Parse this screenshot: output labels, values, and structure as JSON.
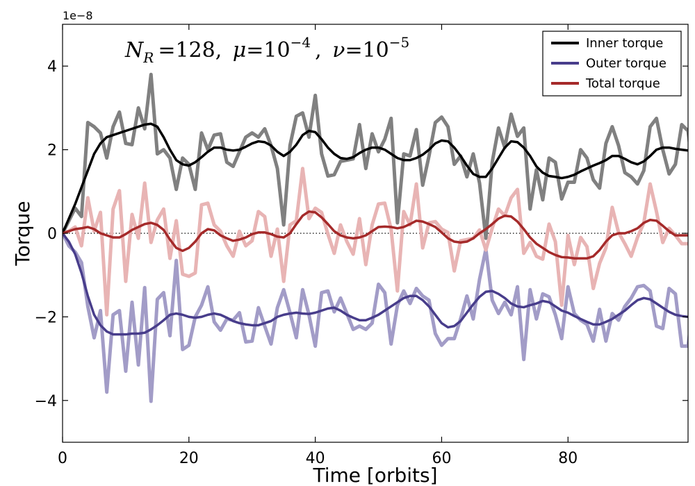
{
  "chart_data": {
    "type": "line",
    "title": "N_R =128, μ =10^−4 , ν =10^−5",
    "title_parts": {
      "n_sym": "N",
      "n_sub": "R",
      "n_val": "=128,",
      "mu_sym": "μ",
      "mu_val": "=10",
      "mu_exp": "−4",
      "comma": ",",
      "nu_sym": "ν",
      "nu_val": "=10",
      "nu_exp": "−5"
    },
    "xlabel": "Time [orbits]",
    "ylabel": "Torque",
    "y_offset_text": "1e−8",
    "xlim": [
      0,
      99
    ],
    "ylim": [
      -5,
      5
    ],
    "xticks": [
      0,
      20,
      40,
      60,
      80
    ],
    "xtick_labels": [
      "0",
      "20",
      "40",
      "60",
      "80"
    ],
    "yticks": [
      -4,
      -2,
      0,
      2,
      4
    ],
    "ytick_labels": [
      "−4",
      "−2",
      "0",
      "2",
      "4"
    ],
    "zero_line": true,
    "legend": {
      "placement": "top-right",
      "entries": [
        {
          "label": "Inner torque",
          "color": "#000000"
        },
        {
          "label": "Outer torque",
          "color": "#483d8b"
        },
        {
          "label": "Total torque",
          "color": "#a52a2a"
        }
      ]
    },
    "raw_series": [
      {
        "key": "inner_raw",
        "color": "#808080",
        "values": [
          0.0,
          0.3,
          0.6,
          0.4,
          2.65,
          2.55,
          2.4,
          1.8,
          2.55,
          2.9,
          2.15,
          2.12,
          3.0,
          2.5,
          3.8,
          1.9,
          2.0,
          1.8,
          1.05,
          1.8,
          1.65,
          1.05,
          2.4,
          2.0,
          2.35,
          2.38,
          1.7,
          1.6,
          1.95,
          2.3,
          2.4,
          2.3,
          2.5,
          2.1,
          1.55,
          0.2,
          2.1,
          2.8,
          2.88,
          2.3,
          3.3,
          1.9,
          1.37,
          1.4,
          1.72,
          1.75,
          1.78,
          2.6,
          1.55,
          2.38,
          1.95,
          2.25,
          2.75,
          0.25,
          1.9,
          1.85,
          2.48,
          1.15,
          1.85,
          2.65,
          2.78,
          2.55,
          1.65,
          1.85,
          1.35,
          1.9,
          1.2,
          -0.12,
          1.7,
          2.52,
          2.05,
          2.85,
          2.32,
          2.52,
          0.58,
          1.52,
          0.8,
          1.8,
          1.7,
          0.82,
          1.22,
          1.22,
          2.0,
          1.8,
          1.28,
          1.08,
          2.15,
          2.55,
          2.1,
          1.45,
          1.35,
          1.18,
          1.5,
          2.55,
          2.75,
          2.0,
          1.42,
          1.65,
          2.6,
          2.45,
          1.2
        ]
      },
      {
        "key": "outer_raw",
        "color": "#a29cc7",
        "values": [
          0.0,
          -0.3,
          -0.45,
          -0.7,
          -1.75,
          -2.5,
          -1.85,
          -3.8,
          -1.95,
          -1.85,
          -3.3,
          -1.65,
          -3.15,
          -1.3,
          -4.02,
          -1.58,
          -1.42,
          -2.45,
          -0.65,
          -2.78,
          -2.68,
          -2.0,
          -1.72,
          -1.28,
          -2.12,
          -2.32,
          -2.05,
          -2.08,
          -1.9,
          -2.6,
          -2.58,
          -1.78,
          -2.22,
          -2.65,
          -1.78,
          -1.35,
          -1.9,
          -2.5,
          -1.35,
          -1.95,
          -2.7,
          -1.42,
          -1.38,
          -1.88,
          -1.55,
          -1.92,
          -2.3,
          -2.22,
          -2.3,
          -2.15,
          -1.22,
          -1.42,
          -2.65,
          -1.72,
          -1.38,
          -1.68,
          -1.32,
          -1.5,
          -1.6,
          -2.4,
          -2.68,
          -2.52,
          -2.52,
          -2.05,
          -1.5,
          -2.05,
          -1.1,
          -0.38,
          -1.6,
          -1.92,
          -1.65,
          -1.95,
          -1.28,
          -3.02,
          -1.35,
          -2.05,
          -1.45,
          -1.52,
          -1.95,
          -2.52,
          -1.28,
          -1.92,
          -2.08,
          -2.18,
          -2.58,
          -1.82,
          -2.58,
          -1.92,
          -2.08,
          -1.75,
          -1.55,
          -1.28,
          -1.25,
          -1.38,
          -2.22,
          -2.28,
          -1.32,
          -1.45,
          -2.7,
          -2.7,
          -1.42
        ]
      },
      {
        "key": "total_raw",
        "color": "#e8b4b4",
        "values": [
          0.0,
          0.05,
          0.15,
          -0.3,
          0.85,
          0.05,
          0.5,
          -1.95,
          0.58,
          1.02,
          -1.15,
          0.45,
          -0.12,
          1.2,
          -0.22,
          0.32,
          0.58,
          -0.6,
          0.3,
          -0.98,
          -1.03,
          -0.95,
          0.68,
          0.72,
          0.2,
          0.05,
          -0.3,
          -0.55,
          0.05,
          -0.3,
          -0.18,
          0.52,
          0.4,
          -0.55,
          0.1,
          -1.15,
          0.2,
          0.3,
          1.55,
          0.35,
          0.6,
          0.5,
          -0.02,
          -0.48,
          0.2,
          -0.2,
          -0.5,
          0.35,
          -0.75,
          0.2,
          0.7,
          0.72,
          0.1,
          -1.38,
          0.52,
          0.2,
          1.18,
          -0.35,
          0.25,
          0.28,
          0.1,
          0.02,
          -0.9,
          -0.18,
          -0.15,
          -0.12,
          0.08,
          -0.4,
          0.12,
          0.58,
          0.42,
          0.85,
          1.05,
          -0.48,
          -0.22,
          -0.55,
          -0.62,
          0.22,
          -0.2,
          -1.72,
          -0.05,
          -0.75,
          -0.1,
          -0.32,
          -1.32,
          -0.72,
          -0.35,
          0.62,
          0.02,
          -0.25,
          -0.55,
          -0.1,
          0.25,
          1.18,
          0.52,
          -0.22,
          0.12,
          -0.05,
          -0.25,
          -0.25,
          -0.25
        ]
      }
    ],
    "series": [
      {
        "name": "Inner torque",
        "color": "#000000",
        "values": [
          0.0,
          0.35,
          0.7,
          1.1,
          1.5,
          1.9,
          2.15,
          2.3,
          2.35,
          2.4,
          2.45,
          2.5,
          2.55,
          2.6,
          2.62,
          2.55,
          2.3,
          2.0,
          1.75,
          1.65,
          1.62,
          1.7,
          1.82,
          1.95,
          2.05,
          2.05,
          2.0,
          1.98,
          2.0,
          2.07,
          2.15,
          2.2,
          2.18,
          2.1,
          1.95,
          1.85,
          1.95,
          2.12,
          2.35,
          2.45,
          2.42,
          2.25,
          2.05,
          1.9,
          1.8,
          1.78,
          1.82,
          1.92,
          2.0,
          2.05,
          2.05,
          2.0,
          1.9,
          1.8,
          1.75,
          1.75,
          1.8,
          1.88,
          2.0,
          2.15,
          2.22,
          2.2,
          2.05,
          1.85,
          1.62,
          1.42,
          1.35,
          1.35,
          1.55,
          1.8,
          2.05,
          2.2,
          2.18,
          2.05,
          1.85,
          1.6,
          1.45,
          1.37,
          1.35,
          1.32,
          1.35,
          1.4,
          1.48,
          1.55,
          1.62,
          1.68,
          1.75,
          1.85,
          1.85,
          1.78,
          1.7,
          1.65,
          1.72,
          1.85,
          2.0,
          2.05,
          2.05,
          2.02,
          2.0,
          1.98,
          1.98
        ]
      },
      {
        "name": "Outer torque",
        "color": "#483d8b",
        "values": [
          0.0,
          -0.2,
          -0.5,
          -0.95,
          -1.5,
          -1.95,
          -2.2,
          -2.35,
          -2.42,
          -2.42,
          -2.42,
          -2.4,
          -2.4,
          -2.38,
          -2.3,
          -2.2,
          -2.08,
          -1.95,
          -1.92,
          -1.95,
          -2.0,
          -2.02,
          -2.0,
          -1.95,
          -1.92,
          -1.95,
          -2.02,
          -2.1,
          -2.15,
          -2.18,
          -2.2,
          -2.2,
          -2.15,
          -2.1,
          -2.0,
          -1.95,
          -1.92,
          -1.9,
          -1.92,
          -1.93,
          -1.9,
          -1.85,
          -1.8,
          -1.78,
          -1.85,
          -1.95,
          -2.02,
          -2.08,
          -2.08,
          -2.02,
          -1.95,
          -1.85,
          -1.75,
          -1.65,
          -1.55,
          -1.5,
          -1.5,
          -1.6,
          -1.75,
          -1.95,
          -2.15,
          -2.25,
          -2.22,
          -2.1,
          -1.9,
          -1.7,
          -1.52,
          -1.4,
          -1.38,
          -1.45,
          -1.55,
          -1.68,
          -1.75,
          -1.77,
          -1.72,
          -1.68,
          -1.62,
          -1.65,
          -1.75,
          -1.85,
          -1.9,
          -1.98,
          -2.05,
          -2.12,
          -2.18,
          -2.18,
          -2.12,
          -2.05,
          -1.95,
          -1.85,
          -1.72,
          -1.6,
          -1.55,
          -1.58,
          -1.68,
          -1.78,
          -1.88,
          -1.95,
          -1.98,
          -2.0,
          -2.0
        ]
      },
      {
        "name": "Total torque",
        "color": "#a52a2a",
        "values": [
          0.0,
          0.05,
          0.1,
          0.12,
          0.15,
          0.1,
          0.0,
          -0.05,
          -0.1,
          -0.1,
          -0.02,
          0.08,
          0.15,
          0.22,
          0.25,
          0.2,
          0.08,
          -0.15,
          -0.35,
          -0.42,
          -0.35,
          -0.2,
          0.0,
          0.1,
          0.07,
          -0.05,
          -0.12,
          -0.18,
          -0.15,
          -0.1,
          -0.02,
          0.02,
          0.02,
          -0.02,
          -0.08,
          -0.1,
          0.0,
          0.22,
          0.42,
          0.52,
          0.5,
          0.38,
          0.22,
          0.05,
          -0.05,
          -0.1,
          -0.12,
          -0.1,
          -0.05,
          0.05,
          0.15,
          0.16,
          0.15,
          0.12,
          0.15,
          0.22,
          0.3,
          0.28,
          0.22,
          0.15,
          0.02,
          -0.12,
          -0.2,
          -0.22,
          -0.2,
          -0.12,
          0.0,
          0.1,
          0.22,
          0.35,
          0.42,
          0.4,
          0.28,
          0.1,
          -0.1,
          -0.25,
          -0.35,
          -0.45,
          -0.52,
          -0.57,
          -0.58,
          -0.6,
          -0.6,
          -0.6,
          -0.55,
          -0.4,
          -0.2,
          -0.05,
          0.0,
          0.0,
          0.05,
          0.12,
          0.25,
          0.32,
          0.3,
          0.18,
          0.05,
          -0.05,
          -0.05,
          -0.05,
          -0.05
        ]
      }
    ]
  }
}
